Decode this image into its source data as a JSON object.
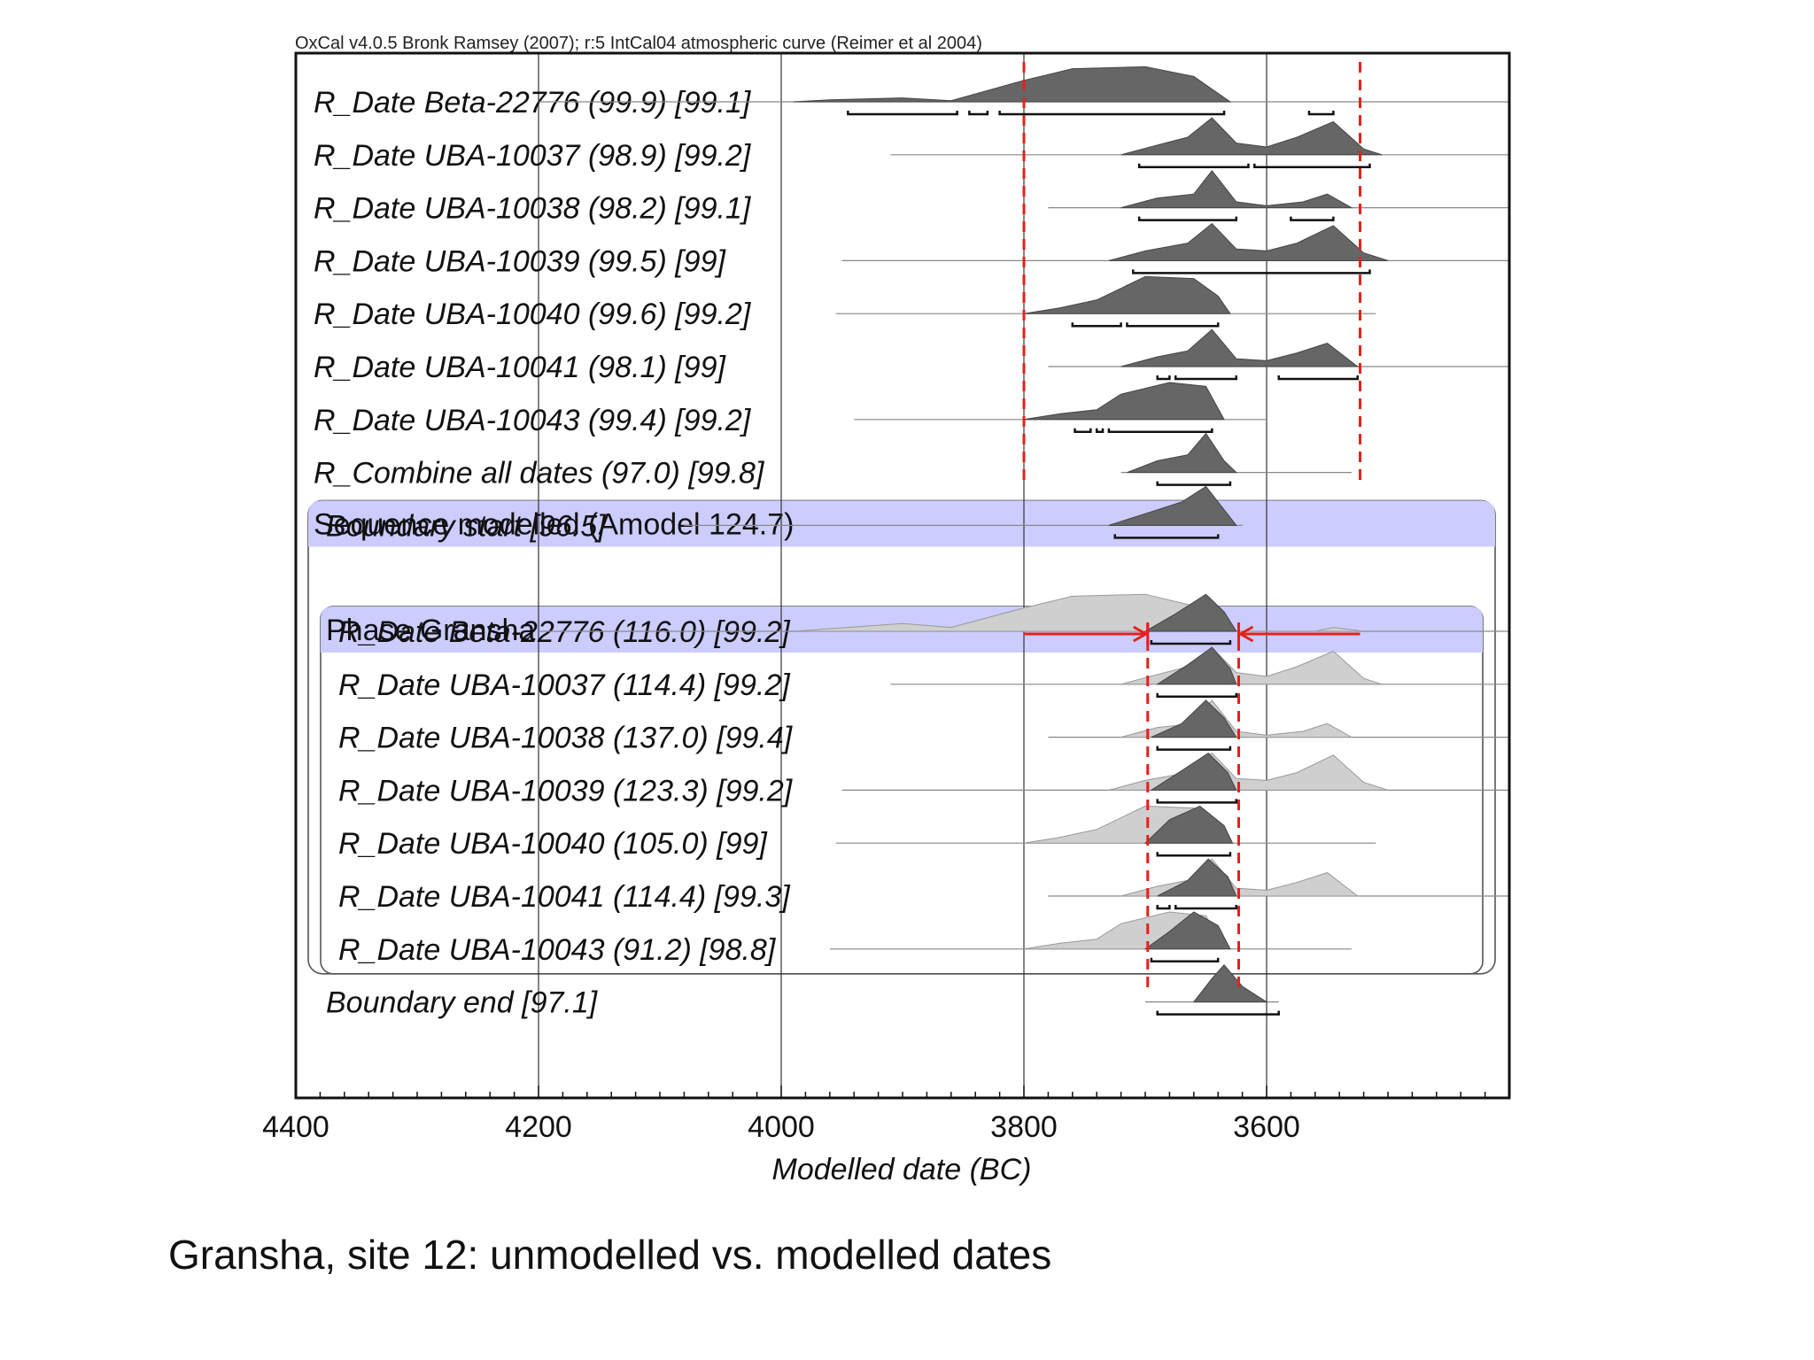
{
  "slide": {
    "caption": "Gransha, site 12: unmodelled vs. modelled dates"
  },
  "chart_data": {
    "type": "area",
    "header": "OxCal v4.0.5 Bronk Ramsey (2007); r:5 IntCal04 atmospheric curve (Reimer et al 2004)",
    "xlabel": "Modelled date (BC)",
    "xlim": [
      4400,
      3400
    ],
    "xticks": [
      4400,
      4200,
      4000,
      3800,
      3600
    ],
    "colors": {
      "distribution": "#666666",
      "prior": "#cfcfcf",
      "band_fill": "#ccccff",
      "markers": "#e2231a",
      "frame": "#111111"
    },
    "markers": {
      "unmodelled_limits": [
        3800,
        3523
      ],
      "phase_limits": [
        3698,
        3623
      ]
    },
    "groups": [
      {
        "label": "Sequence modelled (Amodel 124.7)",
        "from": 8,
        "to": 16
      },
      {
        "label": "Phase Gransha",
        "from": 10,
        "to": 16
      }
    ],
    "rows": [
      {
        "label": "R_Date Beta-22776 (99.9) [99.1]",
        "line": [
          4200,
          3400
        ],
        "dist": [
          [
            3990,
            0
          ],
          [
            3960,
            0.05
          ],
          [
            3900,
            0.1
          ],
          [
            3860,
            0.03
          ],
          [
            3800,
            0.55
          ],
          [
            3760,
            0.85
          ],
          [
            3700,
            0.9
          ],
          [
            3660,
            0.65
          ],
          [
            3630,
            0
          ]
        ],
        "ranges": [
          [
            3945,
            3855
          ],
          [
            3845,
            3830
          ],
          [
            3820,
            3635
          ],
          [
            3565,
            3545
          ]
        ]
      },
      {
        "label": "R_Date UBA-10037 (98.9) [99.2]",
        "line": [
          3910,
          3400
        ],
        "dist": [
          [
            3720,
            0
          ],
          [
            3690,
            0.25
          ],
          [
            3665,
            0.45
          ],
          [
            3645,
            0.95
          ],
          [
            3625,
            0.3
          ],
          [
            3600,
            0.2
          ],
          [
            3575,
            0.45
          ],
          [
            3545,
            0.85
          ],
          [
            3520,
            0.15
          ],
          [
            3505,
            0
          ]
        ],
        "ranges": [
          [
            3705,
            3615
          ],
          [
            3610,
            3515
          ]
        ]
      },
      {
        "label": "R_Date UBA-10038 (98.2) [99.1]",
        "line": [
          3780,
          3400
        ],
        "dist": [
          [
            3720,
            0
          ],
          [
            3690,
            0.25
          ],
          [
            3660,
            0.35
          ],
          [
            3645,
            0.95
          ],
          [
            3625,
            0.15
          ],
          [
            3600,
            0.05
          ],
          [
            3570,
            0.15
          ],
          [
            3550,
            0.35
          ],
          [
            3530,
            0
          ]
        ],
        "ranges": [
          [
            3705,
            3625
          ],
          [
            3580,
            3545
          ]
        ]
      },
      {
        "label": "R_Date UBA-10039 (99.5) [99]",
        "line": [
          3950,
          3400
        ],
        "dist": [
          [
            3730,
            0
          ],
          [
            3700,
            0.25
          ],
          [
            3665,
            0.45
          ],
          [
            3645,
            0.95
          ],
          [
            3625,
            0.3
          ],
          [
            3600,
            0.25
          ],
          [
            3575,
            0.45
          ],
          [
            3545,
            0.9
          ],
          [
            3520,
            0.2
          ],
          [
            3500,
            0
          ]
        ],
        "ranges": [
          [
            3710,
            3515
          ]
        ]
      },
      {
        "label": "R_Date UBA-10040 (99.6) [99.2]",
        "line": [
          3955,
          3510
        ],
        "dist": [
          [
            3800,
            0
          ],
          [
            3770,
            0.15
          ],
          [
            3740,
            0.35
          ],
          [
            3700,
            0.95
          ],
          [
            3660,
            0.9
          ],
          [
            3640,
            0.45
          ],
          [
            3630,
            0
          ]
        ],
        "ranges": [
          [
            3760,
            3720
          ],
          [
            3715,
            3640
          ]
        ]
      },
      {
        "label": "R_Date UBA-10041 (98.1) [99]",
        "line": [
          3780,
          3400
        ],
        "dist": [
          [
            3720,
            0
          ],
          [
            3690,
            0.25
          ],
          [
            3665,
            0.4
          ],
          [
            3645,
            0.95
          ],
          [
            3625,
            0.2
          ],
          [
            3600,
            0.15
          ],
          [
            3575,
            0.35
          ],
          [
            3550,
            0.6
          ],
          [
            3525,
            0
          ]
        ],
        "ranges": [
          [
            3690,
            3680
          ],
          [
            3675,
            3625
          ],
          [
            3590,
            3525
          ]
        ]
      },
      {
        "label": "R_Date UBA-10043 (99.4) [99.2]",
        "line": [
          3940,
          3600
        ],
        "dist": [
          [
            3800,
            0
          ],
          [
            3770,
            0.15
          ],
          [
            3740,
            0.25
          ],
          [
            3720,
            0.65
          ],
          [
            3680,
            0.95
          ],
          [
            3650,
            0.85
          ],
          [
            3635,
            0
          ]
        ],
        "ranges": [
          [
            3758,
            3745
          ],
          [
            3740,
            3735
          ],
          [
            3730,
            3645
          ]
        ]
      },
      {
        "label": "R_Combine all dates (97.0) [99.8]",
        "line": [
          3720,
          3530
        ],
        "dist": [
          [
            3715,
            0
          ],
          [
            3690,
            0.3
          ],
          [
            3665,
            0.45
          ],
          [
            3650,
            1.0
          ],
          [
            3635,
            0.3
          ],
          [
            3625,
            0
          ]
        ],
        "ranges": [
          [
            3690,
            3630
          ]
        ]
      },
      {
        "label": "Boundary start [96.5]",
        "line": [
          4080,
          3620
        ],
        "dist": [
          [
            3730,
            0
          ],
          [
            3700,
            0.3
          ],
          [
            3670,
            0.6
          ],
          [
            3650,
            1.0
          ],
          [
            3625,
            0
          ]
        ],
        "ranges": [
          [
            3725,
            3640
          ]
        ]
      },
      {
        "label": "",
        "line": null,
        "dist": [],
        "ranges": []
      },
      {
        "label": "R_Date Beta-22776 (116.0) [99.2]",
        "line": [
          4200,
          3400
        ],
        "prior": [
          [
            3990,
            0
          ],
          [
            3900,
            0.2
          ],
          [
            3860,
            0.1
          ],
          [
            3800,
            0.6
          ],
          [
            3760,
            0.9
          ],
          [
            3700,
            0.95
          ],
          [
            3660,
            0.65
          ],
          [
            3630,
            0
          ],
          [
            3560,
            0
          ],
          [
            3545,
            0.1
          ],
          [
            3520,
            0
          ]
        ],
        "dist": [
          [
            3700,
            0
          ],
          [
            3675,
            0.45
          ],
          [
            3650,
            0.95
          ],
          [
            3635,
            0.5
          ],
          [
            3625,
            0
          ]
        ],
        "ranges": [
          [
            3695,
            3630
          ]
        ]
      },
      {
        "label": "R_Date UBA-10037 (114.4) [99.2]",
        "line": [
          3910,
          3400
        ],
        "prior": [
          [
            3720,
            0
          ],
          [
            3690,
            0.25
          ],
          [
            3665,
            0.45
          ],
          [
            3645,
            0.95
          ],
          [
            3625,
            0.3
          ],
          [
            3600,
            0.2
          ],
          [
            3575,
            0.45
          ],
          [
            3545,
            0.85
          ],
          [
            3520,
            0.15
          ],
          [
            3505,
            0
          ]
        ],
        "dist": [
          [
            3690,
            0
          ],
          [
            3665,
            0.5
          ],
          [
            3645,
            0.95
          ],
          [
            3630,
            0.4
          ],
          [
            3625,
            0
          ]
        ],
        "ranges": [
          [
            3690,
            3625
          ]
        ]
      },
      {
        "label": "R_Date UBA-10038 (137.0) [99.4]",
        "line": [
          3780,
          3400
        ],
        "prior": [
          [
            3720,
            0
          ],
          [
            3690,
            0.25
          ],
          [
            3660,
            0.35
          ],
          [
            3645,
            0.95
          ],
          [
            3625,
            0.15
          ],
          [
            3600,
            0.05
          ],
          [
            3570,
            0.15
          ],
          [
            3550,
            0.35
          ],
          [
            3530,
            0
          ]
        ],
        "dist": [
          [
            3695,
            0
          ],
          [
            3670,
            0.35
          ],
          [
            3650,
            0.95
          ],
          [
            3635,
            0.5
          ],
          [
            3625,
            0
          ]
        ],
        "ranges": [
          [
            3690,
            3630
          ]
        ]
      },
      {
        "label": "R_Date UBA-10039 (123.3) [99.2]",
        "line": [
          3950,
          3400
        ],
        "prior": [
          [
            3730,
            0
          ],
          [
            3700,
            0.25
          ],
          [
            3665,
            0.45
          ],
          [
            3645,
            0.95
          ],
          [
            3625,
            0.3
          ],
          [
            3600,
            0.25
          ],
          [
            3575,
            0.45
          ],
          [
            3545,
            0.9
          ],
          [
            3520,
            0.2
          ],
          [
            3500,
            0
          ]
        ],
        "dist": [
          [
            3695,
            0
          ],
          [
            3670,
            0.5
          ],
          [
            3648,
            0.95
          ],
          [
            3632,
            0.45
          ],
          [
            3625,
            0
          ]
        ],
        "ranges": [
          [
            3690,
            3625
          ]
        ]
      },
      {
        "label": "R_Date UBA-10040 (105.0) [99]",
        "line": [
          3955,
          3510
        ],
        "prior": [
          [
            3800,
            0
          ],
          [
            3770,
            0.15
          ],
          [
            3740,
            0.35
          ],
          [
            3700,
            0.95
          ],
          [
            3660,
            0.9
          ],
          [
            3640,
            0.45
          ],
          [
            3630,
            0
          ]
        ],
        "dist": [
          [
            3700,
            0
          ],
          [
            3680,
            0.6
          ],
          [
            3655,
            0.95
          ],
          [
            3635,
            0.45
          ],
          [
            3628,
            0
          ]
        ],
        "ranges": [
          [
            3690,
            3630
          ]
        ]
      },
      {
        "label": "R_Date UBA-10041 (114.4) [99.3]",
        "line": [
          3780,
          3400
        ],
        "prior": [
          [
            3720,
            0
          ],
          [
            3690,
            0.25
          ],
          [
            3665,
            0.4
          ],
          [
            3645,
            0.95
          ],
          [
            3625,
            0.2
          ],
          [
            3600,
            0.15
          ],
          [
            3575,
            0.35
          ],
          [
            3550,
            0.6
          ],
          [
            3525,
            0
          ]
        ],
        "dist": [
          [
            3690,
            0
          ],
          [
            3665,
            0.4
          ],
          [
            3648,
            0.95
          ],
          [
            3632,
            0.5
          ],
          [
            3625,
            0
          ]
        ],
        "ranges": [
          [
            3690,
            3680
          ],
          [
            3675,
            3625
          ]
        ]
      },
      {
        "label": "R_Date UBA-10043 (91.2) [98.8]",
        "line": [
          3960,
          3530
        ],
        "prior": [
          [
            3800,
            0
          ],
          [
            3770,
            0.15
          ],
          [
            3740,
            0.25
          ],
          [
            3720,
            0.65
          ],
          [
            3680,
            0.95
          ],
          [
            3650,
            0.85
          ],
          [
            3635,
            0
          ]
        ],
        "dist": [
          [
            3700,
            0
          ],
          [
            3680,
            0.45
          ],
          [
            3660,
            0.95
          ],
          [
            3640,
            0.6
          ],
          [
            3630,
            0
          ]
        ],
        "ranges": [
          [
            3695,
            3640
          ]
        ]
      },
      {
        "label": "Boundary end [97.1]",
        "line": [
          3700,
          3590
        ],
        "dist": [
          [
            3660,
            0
          ],
          [
            3645,
            0.6
          ],
          [
            3635,
            0.95
          ],
          [
            3620,
            0.4
          ],
          [
            3600,
            0
          ]
        ],
        "ranges": [
          [
            3690,
            3590
          ]
        ]
      }
    ]
  }
}
